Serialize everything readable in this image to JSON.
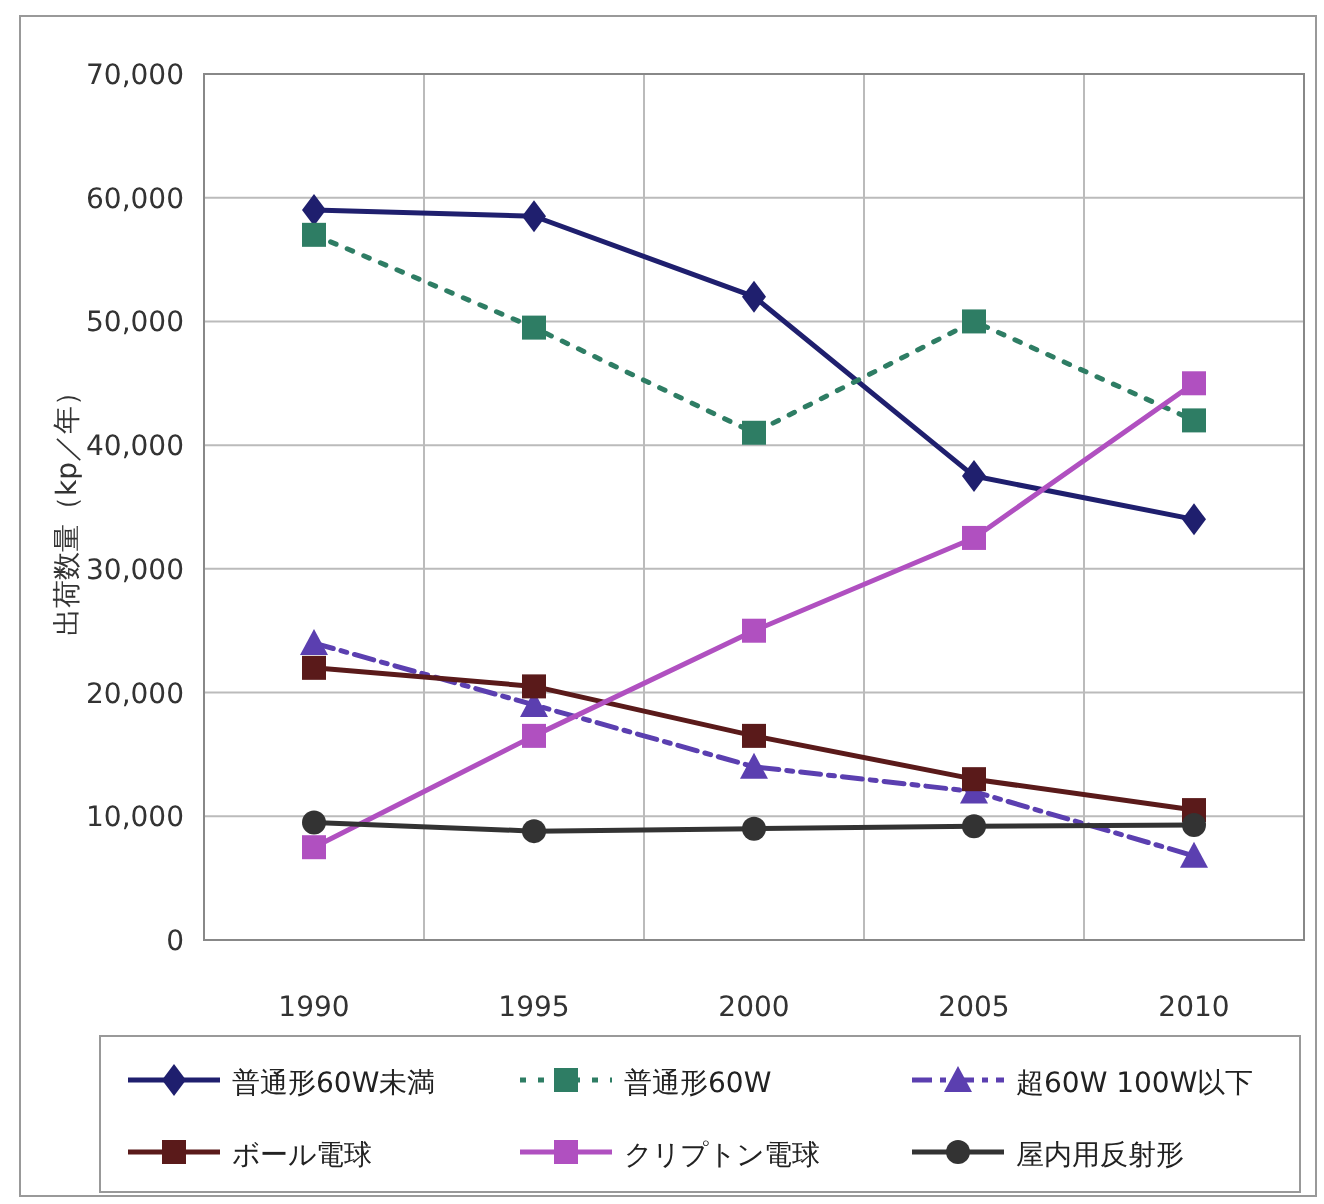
{
  "chart_data": {
    "type": "line",
    "ylabel": "出荷数量（kp／年）",
    "categories": [
      "1990",
      "1995",
      "2000",
      "2005",
      "2010"
    ],
    "ylim": [
      0,
      70000
    ],
    "yticks": [
      {
        "value": 0,
        "label": "0"
      },
      {
        "value": 10000,
        "label": "10,000"
      },
      {
        "value": 20000,
        "label": "20,000"
      },
      {
        "value": 30000,
        "label": "30,000"
      },
      {
        "value": 40000,
        "label": "40,000"
      },
      {
        "value": 50000,
        "label": "50,000"
      },
      {
        "value": 60000,
        "label": "60,000"
      },
      {
        "value": 70000,
        "label": "70,000"
      }
    ],
    "grid": true,
    "legend": "bottom",
    "series": [
      {
        "name": "普通形60W未満",
        "color": "#1f1f6e",
        "marker": "diamond",
        "line_style": "solid",
        "values": [
          59000,
          58500,
          52000,
          37500,
          34000
        ]
      },
      {
        "name": "普通形60W",
        "color": "#2e7d64",
        "marker": "square",
        "line_style": "dotted",
        "values": [
          57000,
          49500,
          41000,
          50000,
          42000
        ]
      },
      {
        "name": "超60W 100W以下",
        "color": "#5b3fb0",
        "marker": "triangle",
        "line_style": "dashed",
        "values": [
          24000,
          19000,
          14000,
          12000,
          6800
        ]
      },
      {
        "name": "ボール電球",
        "color": "#5a1a1a",
        "marker": "square",
        "line_style": "solid",
        "values": [
          22000,
          20500,
          16500,
          13000,
          10500
        ]
      },
      {
        "name": "クリプトン電球",
        "color": "#b050c0",
        "marker": "square",
        "line_style": "solid",
        "values": [
          7500,
          16500,
          25000,
          32500,
          45000
        ]
      },
      {
        "name": "屋内用反射形",
        "color": "#333333",
        "marker": "circle",
        "line_style": "solid",
        "values": [
          9500,
          8800,
          9000,
          9200,
          9300
        ]
      }
    ]
  }
}
